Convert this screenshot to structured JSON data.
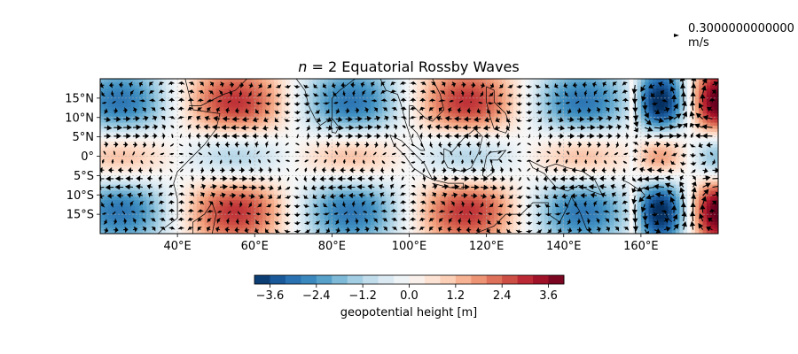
{
  "chart_data": {
    "type": "heatmap",
    "title": "n = 2 Equatorial Rossby Waves",
    "title_parts": {
      "n": "n",
      "eq": " = 2 Equatorial Rossby Waves"
    },
    "xlim": [
      20,
      180
    ],
    "ylim": [
      -20,
      20
    ],
    "xticks": [
      {
        "value": 40,
        "label": "40°E"
      },
      {
        "value": 60,
        "label": "60°E"
      },
      {
        "value": 80,
        "label": "80°E"
      },
      {
        "value": 100,
        "label": "100°E"
      },
      {
        "value": 120,
        "label": "120°E"
      },
      {
        "value": 140,
        "label": "140°E"
      },
      {
        "value": 160,
        "label": "160°E"
      }
    ],
    "yticks": [
      {
        "value": 15,
        "label": "15°N"
      },
      {
        "value": 10,
        "label": "10°N"
      },
      {
        "value": 5,
        "label": "5°N"
      },
      {
        "value": 0,
        "label": "0°"
      },
      {
        "value": -5,
        "label": "5°S"
      },
      {
        "value": -10,
        "label": "10°S"
      },
      {
        "value": -15,
        "label": "15°S"
      }
    ],
    "grid": true,
    "colormap": "RdBu_r",
    "colorbar": {
      "label": "geopotential height [m]",
      "range": [
        -4,
        4
      ],
      "ticks": [
        {
          "value": -3.6,
          "label": "−3.6"
        },
        {
          "value": -2.4,
          "label": "−2.4"
        },
        {
          "value": -1.2,
          "label": "−1.2"
        },
        {
          "value": 0.0,
          "label": "0.0"
        },
        {
          "value": 1.2,
          "label": "1.2"
        },
        {
          "value": 2.4,
          "label": "2.4"
        },
        {
          "value": 3.6,
          "label": "3.6"
        }
      ]
    },
    "quiver_key": {
      "value": "0.3000000000000",
      "unit": "m/s"
    },
    "field": {
      "description_free_params": true,
      "wavelength_deg": 60,
      "sections": [
        {
          "lon_range": [
            20,
            157
          ],
          "wavelength_deg": 60,
          "amplitude": 2.8
        },
        {
          "lon_range": [
            157,
            180
          ],
          "wavelength_deg": 30,
          "amplitude": 4.0
        }
      ]
    }
  },
  "colors": {
    "negative_strong": "#053061",
    "negative_mid": "#4393c3",
    "neutral": "#f7f7f7",
    "positive_mid": "#f4a582",
    "positive_strong": "#67001f",
    "coastline": "#000000",
    "arrow": "#000000"
  }
}
